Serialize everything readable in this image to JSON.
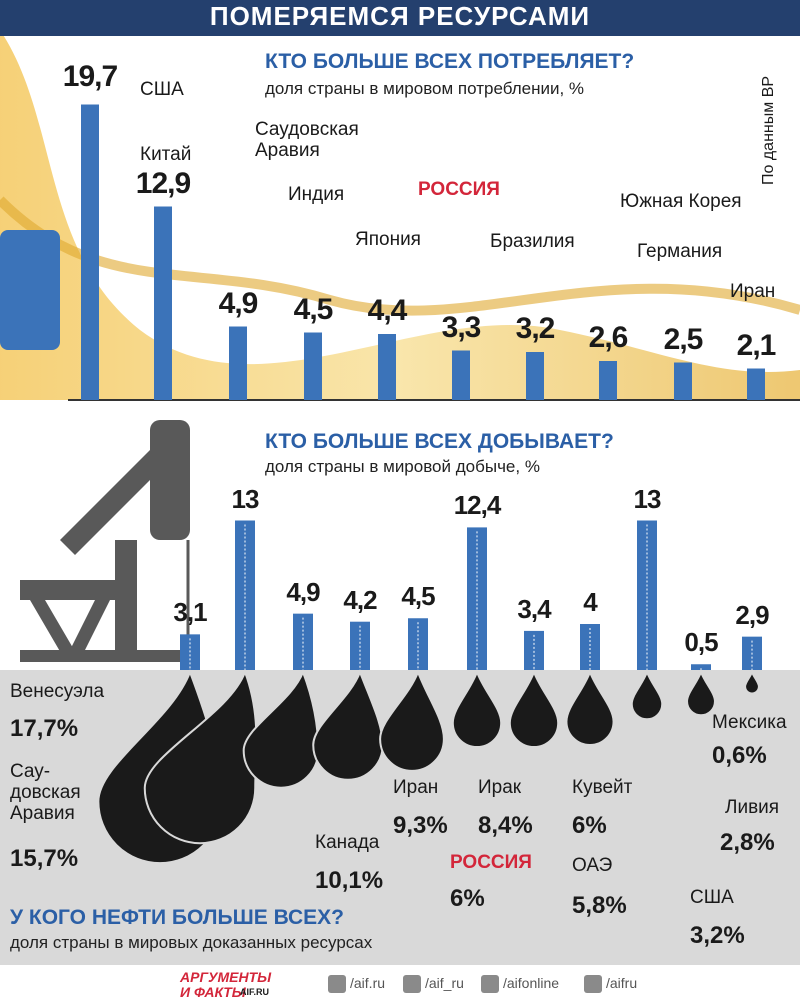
{
  "header": "ПОМЕРЯЕМСЯ РЕСУРСАМИ",
  "source": "По данным BP",
  "chart_data": [
    {
      "type": "bar",
      "title": "КТО БОЛЬШЕ ВСЕХ ПОТРЕБЛЯЕТ?",
      "subtitle": "доля страны в мировом потреблении, %",
      "color": "#3b73b9",
      "highlight_index": 5,
      "categories": [
        "США",
        "Китай",
        "Саудовская\nАравия",
        "Индия",
        "Япония",
        "РОССИЯ",
        "Бразилия",
        "Южная Корея",
        "Германия",
        "Иран"
      ],
      "values": [
        19.7,
        12.9,
        4.9,
        4.5,
        4.4,
        3.3,
        3.2,
        2.6,
        2.5,
        2.1
      ],
      "value_labels": [
        "19,7",
        "12,9",
        "4,9",
        "4,5",
        "4,4",
        "3,3",
        "3,2",
        "2,6",
        "2,5",
        "2,1"
      ]
    },
    {
      "type": "bar",
      "title": "КТО БОЛЬШЕ ВСЕХ ДОБЫВАЕТ?",
      "subtitle": "доля страны в мировой добыче, %",
      "color": "#3b73b9",
      "values": [
        3.1,
        13,
        4.9,
        4.2,
        4.5,
        12.4,
        3.4,
        4,
        13,
        0.5,
        2.9
      ],
      "value_labels": [
        "3,1",
        "13",
        "4,9",
        "4,2",
        "4,5",
        "12,4",
        "3,4",
        "4",
        "13",
        "0,5",
        "2,9"
      ]
    },
    {
      "type": "drop",
      "title": "У КОГО НЕФТИ БОЛЬШЕ ВСЕХ?",
      "subtitle": "доля страны в мировых доказанных ресурсах",
      "color": "#1a1a1a",
      "highlight_index": 5,
      "categories": [
        "Венесуэла",
        "Сау-\nдовская\nАравия",
        "Канада",
        "Иран",
        "Ирак",
        "РОССИЯ",
        "Кувейт",
        "ОАЭ",
        "США",
        "Ливия",
        "Мексика"
      ],
      "values": [
        17.7,
        15.7,
        10.1,
        9.3,
        8.4,
        6,
        6,
        5.8,
        3.2,
        2.8,
        0.6
      ],
      "value_labels": [
        "17,7%",
        "15,7%",
        "10,1%",
        "9,3%",
        "8,4%",
        "6%",
        "6%",
        "5,8%",
        "3,2%",
        "2,8%",
        "0,6%"
      ]
    }
  ],
  "footer": {
    "logo": "АРГУМЕНТЫ И ФАКТЫ",
    "logo_site": "AIF.RU",
    "social": [
      "/aif.ru",
      "/aif_ru",
      "/aifonline",
      "/aifru"
    ]
  }
}
